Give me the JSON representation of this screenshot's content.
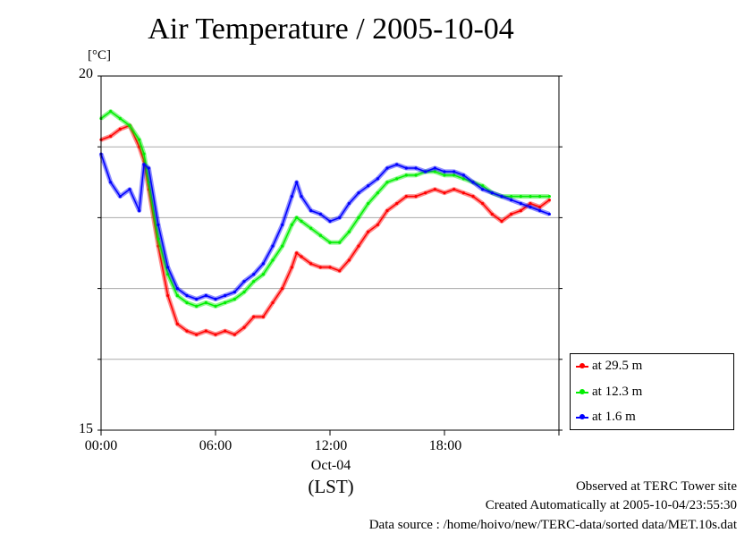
{
  "chart_data": {
    "type": "line",
    "title": "Air Temperature / 2005-10-04",
    "ylabel": "[°C]",
    "xlabel": "(LST)",
    "x_date_label": "Oct-04",
    "ylim": [
      15,
      20
    ],
    "xlim": [
      0,
      24
    ],
    "y_tick_labels": [
      "20",
      "15"
    ],
    "x_tick_labels": [
      "00:00",
      "06:00",
      "12:00",
      "18:00"
    ],
    "grid": true,
    "legend_position": "right",
    "x": [
      0,
      0.5,
      1,
      1.5,
      2,
      2.25,
      2.5,
      3,
      3.5,
      4,
      4.5,
      5,
      5.5,
      6,
      6.5,
      7,
      7.5,
      8,
      8.5,
      9,
      9.5,
      10,
      10.25,
      10.5,
      11,
      11.5,
      12,
      12.5,
      13,
      13.5,
      14,
      14.5,
      15,
      15.5,
      16,
      16.5,
      17,
      17.5,
      18,
      18.5,
      19,
      19.5,
      20,
      20.5,
      21,
      21.5,
      22,
      22.5,
      23,
      23.5
    ],
    "series": [
      {
        "name": "at 29.5 m",
        "color": "#ff0000",
        "values": [
          19.1,
          19.15,
          19.25,
          19.3,
          19.0,
          18.8,
          18.4,
          17.6,
          16.9,
          16.5,
          16.4,
          16.35,
          16.4,
          16.35,
          16.4,
          16.35,
          16.45,
          16.6,
          16.6,
          16.8,
          17.0,
          17.3,
          17.5,
          17.45,
          17.35,
          17.3,
          17.3,
          17.25,
          17.4,
          17.6,
          17.8,
          17.9,
          18.1,
          18.2,
          18.3,
          18.3,
          18.35,
          18.4,
          18.35,
          18.4,
          18.35,
          18.3,
          18.2,
          18.05,
          17.95,
          18.05,
          18.1,
          18.2,
          18.15,
          18.25
        ]
      },
      {
        "name": "at 12.3 m",
        "color": "#00ee00",
        "values": [
          19.4,
          19.5,
          19.4,
          19.3,
          19.1,
          18.9,
          18.5,
          17.7,
          17.2,
          16.9,
          16.8,
          16.75,
          16.8,
          16.75,
          16.8,
          16.85,
          16.95,
          17.1,
          17.2,
          17.4,
          17.6,
          17.9,
          18.0,
          17.95,
          17.85,
          17.75,
          17.65,
          17.65,
          17.8,
          18.0,
          18.2,
          18.35,
          18.5,
          18.55,
          18.6,
          18.6,
          18.65,
          18.65,
          18.6,
          18.6,
          18.55,
          18.5,
          18.45,
          18.35,
          18.3,
          18.3,
          18.3,
          18.3,
          18.3,
          18.3
        ]
      },
      {
        "name": "at 1.6 m",
        "color": "#0000ff",
        "values": [
          18.9,
          18.5,
          18.3,
          18.4,
          18.1,
          18.75,
          18.7,
          17.9,
          17.3,
          17.0,
          16.9,
          16.85,
          16.9,
          16.85,
          16.9,
          16.95,
          17.1,
          17.2,
          17.35,
          17.6,
          17.9,
          18.3,
          18.5,
          18.3,
          18.1,
          18.05,
          17.95,
          18.0,
          18.2,
          18.35,
          18.45,
          18.55,
          18.7,
          18.75,
          18.7,
          18.7,
          18.65,
          18.7,
          18.65,
          18.65,
          18.6,
          18.5,
          18.4,
          18.35,
          18.3,
          18.25,
          18.2,
          18.15,
          18.1,
          18.05
        ]
      }
    ]
  },
  "footer": {
    "site": "Observed at TERC Tower site",
    "created": "Created Automatically at 2005-10-04/23:55:30",
    "source": "Data source : /home/hoivo/new/TERC-data/sorted  data/MET.10s.dat"
  }
}
